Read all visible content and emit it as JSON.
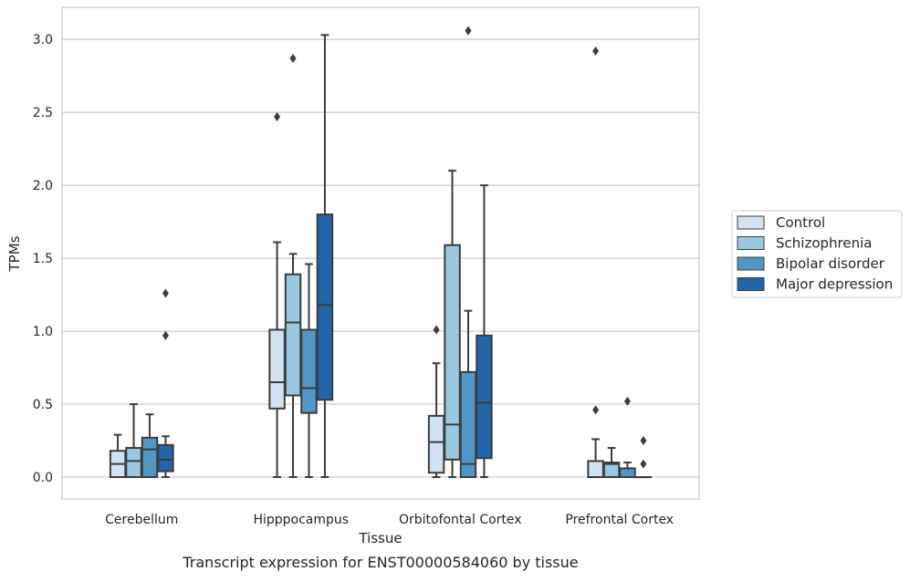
{
  "chart_data": {
    "type": "box",
    "title": "",
    "xlabel": "Tissue",
    "ylabel": "TPMs",
    "caption": "Transcript expression for ENST00000584060 by tissue",
    "ylim": [
      -0.15,
      3.22
    ],
    "yticks": [
      0.0,
      0.5,
      1.0,
      1.5,
      2.0,
      2.5,
      3.0
    ],
    "ytick_labels": [
      "0.0",
      "0.5",
      "1.0",
      "1.5",
      "2.0",
      "2.5",
      "3.0"
    ],
    "grid": "horizontal",
    "legend_position": "right",
    "categories": [
      "Cerebellum",
      "Hipppocampus",
      "Orbitofontal Cortex",
      "Prefrontal Cortex"
    ],
    "series": [
      {
        "name": "Control",
        "color": "#d1e2f2",
        "boxes": [
          {
            "min": 0.0,
            "q1": 0.0,
            "median": 0.09,
            "q3": 0.18,
            "max": 0.29,
            "outliers": []
          },
          {
            "min": 0.0,
            "q1": 0.47,
            "median": 0.65,
            "q3": 1.01,
            "max": 1.61,
            "outliers": [
              2.47
            ]
          },
          {
            "min": 0.0,
            "q1": 0.03,
            "median": 0.24,
            "q3": 0.42,
            "max": 0.78,
            "outliers": [
              1.01
            ]
          },
          {
            "min": 0.0,
            "q1": 0.0,
            "median": 0.0,
            "q3": 0.11,
            "max": 0.26,
            "outliers": [
              0.46,
              2.92
            ]
          }
        ]
      },
      {
        "name": "Schizophrenia",
        "color": "#9ac8e0",
        "boxes": [
          {
            "min": 0.0,
            "q1": 0.0,
            "median": 0.11,
            "q3": 0.2,
            "max": 0.5,
            "outliers": []
          },
          {
            "min": 0.0,
            "q1": 0.56,
            "median": 1.06,
            "q3": 1.39,
            "max": 1.53,
            "outliers": [
              2.87
            ]
          },
          {
            "min": 0.0,
            "q1": 0.12,
            "median": 0.36,
            "q3": 1.59,
            "max": 2.1,
            "outliers": []
          },
          {
            "min": 0.0,
            "q1": 0.0,
            "median": 0.09,
            "q3": 0.1,
            "max": 0.2,
            "outliers": []
          }
        ]
      },
      {
        "name": "Bipolar disorder",
        "color": "#5097c8",
        "boxes": [
          {
            "min": 0.0,
            "q1": 0.0,
            "median": 0.19,
            "q3": 0.27,
            "max": 0.43,
            "outliers": []
          },
          {
            "min": 0.0,
            "q1": 0.44,
            "median": 0.61,
            "q3": 1.01,
            "max": 1.46,
            "outliers": []
          },
          {
            "min": 0.0,
            "q1": 0.0,
            "median": 0.09,
            "q3": 0.72,
            "max": 1.14,
            "outliers": [
              3.06
            ]
          },
          {
            "min": 0.0,
            "q1": 0.0,
            "median": 0.0,
            "q3": 0.06,
            "max": 0.1,
            "outliers": [
              0.52
            ]
          }
        ]
      },
      {
        "name": "Major depression",
        "color": "#2265aa",
        "boxes": [
          {
            "min": 0.0,
            "q1": 0.04,
            "median": 0.12,
            "q3": 0.22,
            "max": 0.28,
            "outliers": [
              0.97,
              1.26
            ]
          },
          {
            "min": 0.0,
            "q1": 0.53,
            "median": 1.18,
            "q3": 1.8,
            "max": 3.03,
            "outliers": []
          },
          {
            "min": 0.0,
            "q1": 0.13,
            "median": 0.51,
            "q3": 0.97,
            "max": 2.0,
            "outliers": []
          },
          {
            "min": 0.0,
            "q1": 0.0,
            "median": 0.0,
            "q3": 0.0,
            "max": 0.0,
            "outliers": [
              0.09,
              0.25
            ]
          }
        ]
      }
    ]
  }
}
